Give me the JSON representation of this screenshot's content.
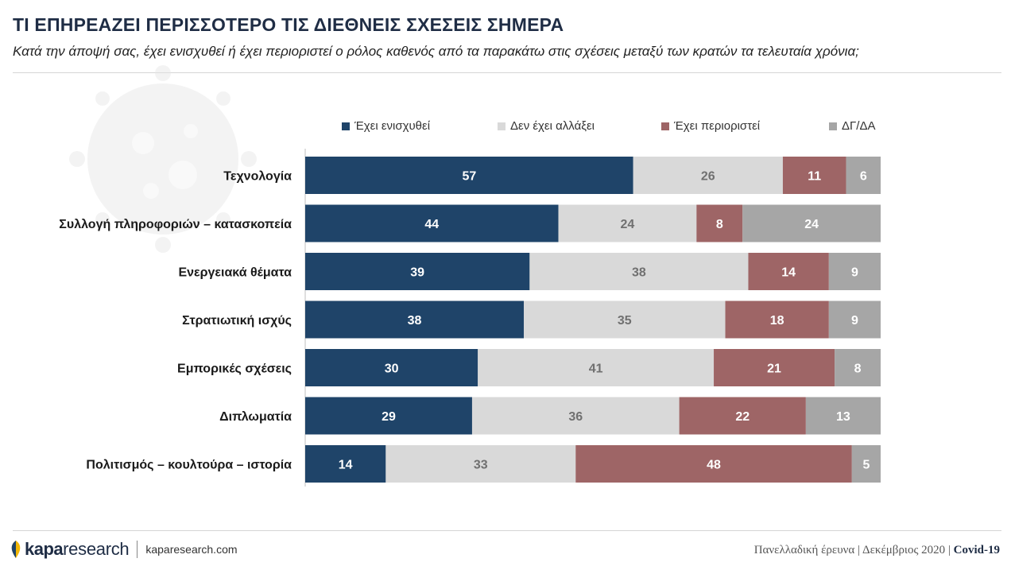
{
  "header": {
    "title": "ΤΙ ΕΠΗΡΕΑΖΕΙ ΠΕΡΙΣΣΟΤΕΡΟ ΤΙΣ ΔΙΕΘΝΕΙΣ ΣΧΕΣΕΙΣ ΣΗΜΕΡΑ",
    "subtitle": "Κατά την άποψή σας, έχει ενισχυθεί ή έχει περιοριστεί ο ρόλος καθενός από τα παρακάτω στις σχέσεις μεταξύ των κρατών τα τελευταία χρόνια;"
  },
  "chart_data": {
    "type": "bar",
    "orientation": "horizontal",
    "stacked": true,
    "categories": [
      "Τεχνολογία",
      "Συλλογή πληροφοριών – κατασκοπεία",
      "Ενεργειακά θέματα",
      "Στρατιωτική ισχύς",
      "Εμπορικές σχέσεις",
      "Διπλωματία",
      "Πολιτισμός – κουλτούρα – ιστορία"
    ],
    "series": [
      {
        "name": "Έχει ενισχυθεί",
        "color": "#1f4469",
        "label_color": "#ffffff",
        "values": [
          57,
          44,
          39,
          38,
          30,
          29,
          14
        ]
      },
      {
        "name": "Δεν έχει αλλάξει",
        "color": "#d9d9d9",
        "label_color": "#707070",
        "values": [
          26,
          24,
          38,
          35,
          41,
          36,
          33
        ]
      },
      {
        "name": "Έχει περιοριστεί",
        "color": "#9e6566",
        "label_color": "#ffffff",
        "values": [
          11,
          8,
          14,
          18,
          21,
          22,
          48
        ]
      },
      {
        "name": "ΔΓ/ΔΑ",
        "color": "#a6a6a6",
        "label_color": "#ffffff",
        "values": [
          6,
          24,
          9,
          9,
          8,
          13,
          5
        ]
      }
    ],
    "legend_position": "top",
    "grid": false
  },
  "footer": {
    "logo_kapa": "kapa",
    "logo_research": "research",
    "url": "kaparesearch.com",
    "note": "Πανελλαδική έρευνα | Δεκέμβριος 2020 |",
    "tag": "Covid-19"
  }
}
